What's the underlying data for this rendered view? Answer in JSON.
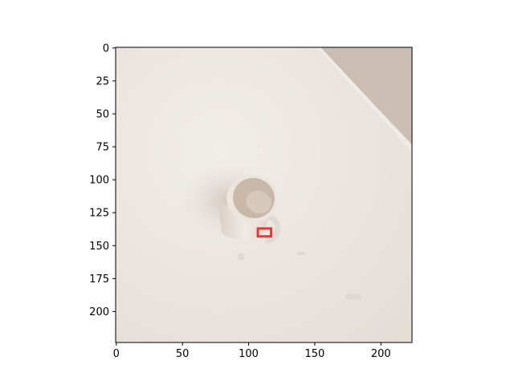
{
  "figure": {
    "image": {
      "description_icon": "photo-of-white-mug-on-table",
      "colors": {
        "table": "#ece7e2",
        "shadow": "#d8cec6",
        "mug_outer": "#e9e2da",
        "mug_inner": "#c9b8a8",
        "corner": "#cbbdb1",
        "bbox": "#e53935"
      }
    },
    "x_axis": {
      "ticks": [
        {
          "value": 0,
          "label": "0"
        },
        {
          "value": 50,
          "label": "50"
        },
        {
          "value": 100,
          "label": "100"
        },
        {
          "value": 150,
          "label": "150"
        },
        {
          "value": 200,
          "label": "200"
        }
      ]
    },
    "y_axis": {
      "ticks": [
        {
          "value": 0,
          "label": "0"
        },
        {
          "value": 25,
          "label": "25"
        },
        {
          "value": 50,
          "label": "50"
        },
        {
          "value": 75,
          "label": "75"
        },
        {
          "value": 100,
          "label": "100"
        },
        {
          "value": 125,
          "label": "125"
        },
        {
          "value": 150,
          "label": "150"
        },
        {
          "value": 175,
          "label": "175"
        },
        {
          "value": 200,
          "label": "200"
        }
      ]
    },
    "annotation": {
      "type": "bounding-box",
      "x_range": [
        107,
        117
      ],
      "y_range": [
        137,
        143
      ]
    }
  }
}
